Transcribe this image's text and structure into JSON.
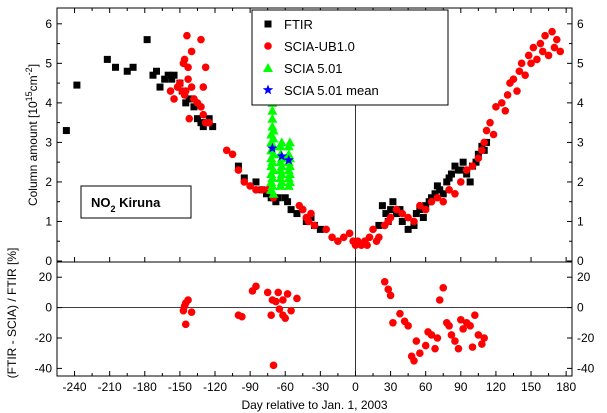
{
  "chart_data": [
    {
      "id": "column",
      "type": "scatter",
      "title": "",
      "xlabel": "Day relative to Jan. 1, 2003",
      "ylabel": "Column amount [10",
      "ylabel_sup": "15",
      "ylabel_tail": "cm",
      "ylabel_unit_sup": "-2",
      "ylabel_close": "]",
      "xlim": [
        -255,
        185
      ],
      "ylim": [
        0,
        6.4
      ],
      "xticks": [
        -240,
        -210,
        -180,
        -150,
        -120,
        -90,
        -60,
        -30,
        0,
        30,
        60,
        90,
        120,
        150,
        180
      ],
      "yticks": [
        0,
        1,
        2,
        3,
        4,
        5,
        6
      ],
      "vline_x": 0,
      "annotation": {
        "text": "NO",
        "sub": "2",
        "tail": " Kiruna"
      },
      "legend": {
        "placement": "top-center"
      },
      "series": [
        {
          "name": "FTIR",
          "marker": "square",
          "color": "#000000",
          "x": [
            -247,
            -238,
            -212,
            -205,
            -195,
            -190,
            -178,
            -173,
            -170,
            -167,
            -163,
            -160,
            -157,
            -155,
            -150,
            -148,
            -145,
            -142,
            -138,
            -135,
            -132,
            -130,
            -128,
            -125,
            -122,
            -100,
            -95,
            -85,
            -80,
            -76,
            -72,
            -70,
            -68,
            -66,
            -60,
            -58,
            -55,
            -50,
            -42,
            -38,
            -35,
            -30,
            20,
            23,
            26,
            28,
            30,
            32,
            35,
            38,
            40,
            45,
            50,
            52,
            55,
            58,
            60,
            63,
            65,
            68,
            70,
            72,
            75,
            78,
            80,
            82,
            85,
            88,
            90,
            92,
            95,
            98,
            100,
            103,
            105,
            108,
            110,
            112
          ],
          "y": [
            3.3,
            4.45,
            5.1,
            4.9,
            4.8,
            4.9,
            5.6,
            4.7,
            4.8,
            4.4,
            4.6,
            4.7,
            4.6,
            4.7,
            4.5,
            4.3,
            4.0,
            4.1,
            3.9,
            3.6,
            3.5,
            3.4,
            3.5,
            3.6,
            3.4,
            2.4,
            2.1,
            2.0,
            1.8,
            1.7,
            1.6,
            1.6,
            1.5,
            1.6,
            1.6,
            1.5,
            1.3,
            1.2,
            1.0,
            1.1,
            0.9,
            0.8,
            0.9,
            1.4,
            1.2,
            1.0,
            1.3,
            1.5,
            1.2,
            1.3,
            1.0,
            0.8,
            0.9,
            1.2,
            1.3,
            1.1,
            1.4,
            1.5,
            1.6,
            1.7,
            1.9,
            1.8,
            1.7,
            2.0,
            2.1,
            2.2,
            2.4,
            2.3,
            2.3,
            2.5,
            2.2,
            2.0,
            2.4,
            2.5,
            2.7,
            2.9,
            2.8,
            3.0
          ]
        },
        {
          "name": "SCIA-UB1.0",
          "marker": "circle",
          "color": "#ff0000",
          "x": [
            -158,
            -155,
            -152,
            -150,
            -148,
            -146,
            -144,
            -143,
            -140,
            -138,
            -135,
            -132,
            -130,
            -128,
            -125,
            -110,
            -105,
            -100,
            -95,
            -90,
            -85,
            -80,
            -75,
            -70,
            -48,
            -45,
            -42,
            -40,
            -38,
            -35,
            -25,
            -20,
            -15,
            -10,
            -5,
            -2,
            0,
            2,
            5,
            8,
            10,
            12,
            15,
            18,
            20,
            25,
            28,
            30,
            35,
            40,
            45,
            50,
            55,
            60,
            65,
            70,
            75,
            80,
            85,
            90,
            95,
            100,
            105,
            108,
            110,
            112,
            115,
            118,
            120,
            125,
            128,
            130,
            132,
            135,
            138,
            140,
            142,
            145,
            148,
            150,
            152,
            155,
            158,
            160,
            162,
            165,
            168,
            170,
            172,
            175,
            -147,
            -143,
            -130,
            -128,
            -140,
            -132,
            -145,
            -142,
            -146
          ],
          "y": [
            4.3,
            4.1,
            4.4,
            4.5,
            4.3,
            5.1,
            5.7,
            4.6,
            4.4,
            4.1,
            4.0,
            3.9,
            3.7,
            3.5,
            3.5,
            2.8,
            2.7,
            2.3,
            2.0,
            1.9,
            1.8,
            1.8,
            1.8,
            1.6,
            1.4,
            1.3,
            1.1,
            1.0,
            1.2,
            0.9,
            0.8,
            0.6,
            0.5,
            0.6,
            0.7,
            0.5,
            0.4,
            0.5,
            0.4,
            0.5,
            0.4,
            0.6,
            0.8,
            0.5,
            0.6,
            0.9,
            1.0,
            1.1,
            1.3,
            1.2,
            1.1,
            1.0,
            1.4,
            1.3,
            1.5,
            1.6,
            1.5,
            1.8,
            1.7,
            2.0,
            2.3,
            2.4,
            2.6,
            2.8,
            3.0,
            3.3,
            3.5,
            3.2,
            3.9,
            4.0,
            3.8,
            4.2,
            4.5,
            4.6,
            4.3,
            4.8,
            5.0,
            4.7,
            5.2,
            5.0,
            5.4,
            5.1,
            5.5,
            5.3,
            5.7,
            5.2,
            5.8,
            5.4,
            5.6,
            5.3,
            5.0,
            4.9,
            4.4,
            4.9,
            5.3,
            5.6,
            4.3,
            3.6,
            4.2
          ]
        },
        {
          "name": "SCIA 5.01",
          "marker": "triangle",
          "color": "#00ff00",
          "x": [
            -72,
            -72,
            -72,
            -72,
            -72,
            -72,
            -72,
            -72,
            -71,
            -71,
            -71,
            -71,
            -71,
            -71,
            -71,
            -70,
            -70,
            -70,
            -70,
            -70,
            -70,
            -64,
            -64,
            -64,
            -64,
            -64,
            -64,
            -63,
            -63,
            -63,
            -63,
            -63,
            -57,
            -57,
            -57,
            -57,
            -57,
            -57,
            -56,
            -56,
            -56,
            -56,
            -56
          ],
          "y": [
            1.8,
            2.0,
            2.2,
            2.4,
            2.6,
            2.8,
            3.0,
            3.2,
            3.4,
            3.6,
            3.8,
            4.0,
            2.5,
            2.1,
            1.9,
            2.7,
            2.9,
            3.1,
            3.3,
            2.3,
            1.7,
            1.9,
            2.1,
            2.3,
            2.5,
            2.7,
            2.9,
            3.0,
            2.2,
            2.4,
            2.6,
            2.0,
            1.9,
            2.1,
            2.3,
            2.5,
            2.7,
            2.9,
            3.0,
            2.4,
            2.6,
            2.2,
            2.0
          ]
        },
        {
          "name": "SCIA 5.01 mean",
          "marker": "star",
          "color": "#0000ff",
          "x": [
            -71,
            -63,
            -57
          ],
          "y": [
            2.85,
            2.65,
            2.55
          ]
        }
      ]
    },
    {
      "id": "difference",
      "type": "scatter",
      "title": "",
      "xlabel": "Day relative to Jan. 1, 2003",
      "ylabel": "(FTIR - SCIA) / FTIR [%]",
      "xlim": [
        -255,
        185
      ],
      "ylim": [
        -45,
        30
      ],
      "yticks": [
        20,
        0,
        -20,
        -40
      ],
      "hline_y": 0,
      "vline_x": 0,
      "series": [
        {
          "name": "",
          "marker": "circle",
          "color": "#ff0000",
          "x": [
            -147,
            -145,
            -143,
            -140,
            -145,
            -146,
            -100,
            -97,
            -88,
            -85,
            -75,
            -72,
            -71,
            -68,
            -66,
            -65,
            -62,
            -60,
            -58,
            -55,
            -50,
            25,
            28,
            30,
            32,
            38,
            42,
            45,
            48,
            50,
            52,
            55,
            60,
            62,
            65,
            68,
            70,
            72,
            75,
            78,
            80,
            82,
            85,
            88,
            90,
            92,
            95,
            98,
            100,
            102,
            105,
            108,
            110,
            -70,
            -62
          ],
          "y": [
            -2,
            3,
            5,
            -3,
            -11,
            1,
            -5,
            -6,
            11,
            14,
            10,
            -5,
            5,
            4,
            10,
            -1,
            -5,
            -7,
            9,
            -2,
            6,
            17,
            12,
            8,
            -10,
            -4,
            -9,
            -12,
            -32,
            -35,
            -22,
            -30,
            -25,
            -16,
            -18,
            -27,
            -20,
            5,
            13,
            -10,
            -12,
            -18,
            -22,
            -27,
            -8,
            -14,
            -10,
            -12,
            -26,
            -5,
            -18,
            -24,
            -20,
            -38,
            5
          ]
        }
      ]
    }
  ]
}
